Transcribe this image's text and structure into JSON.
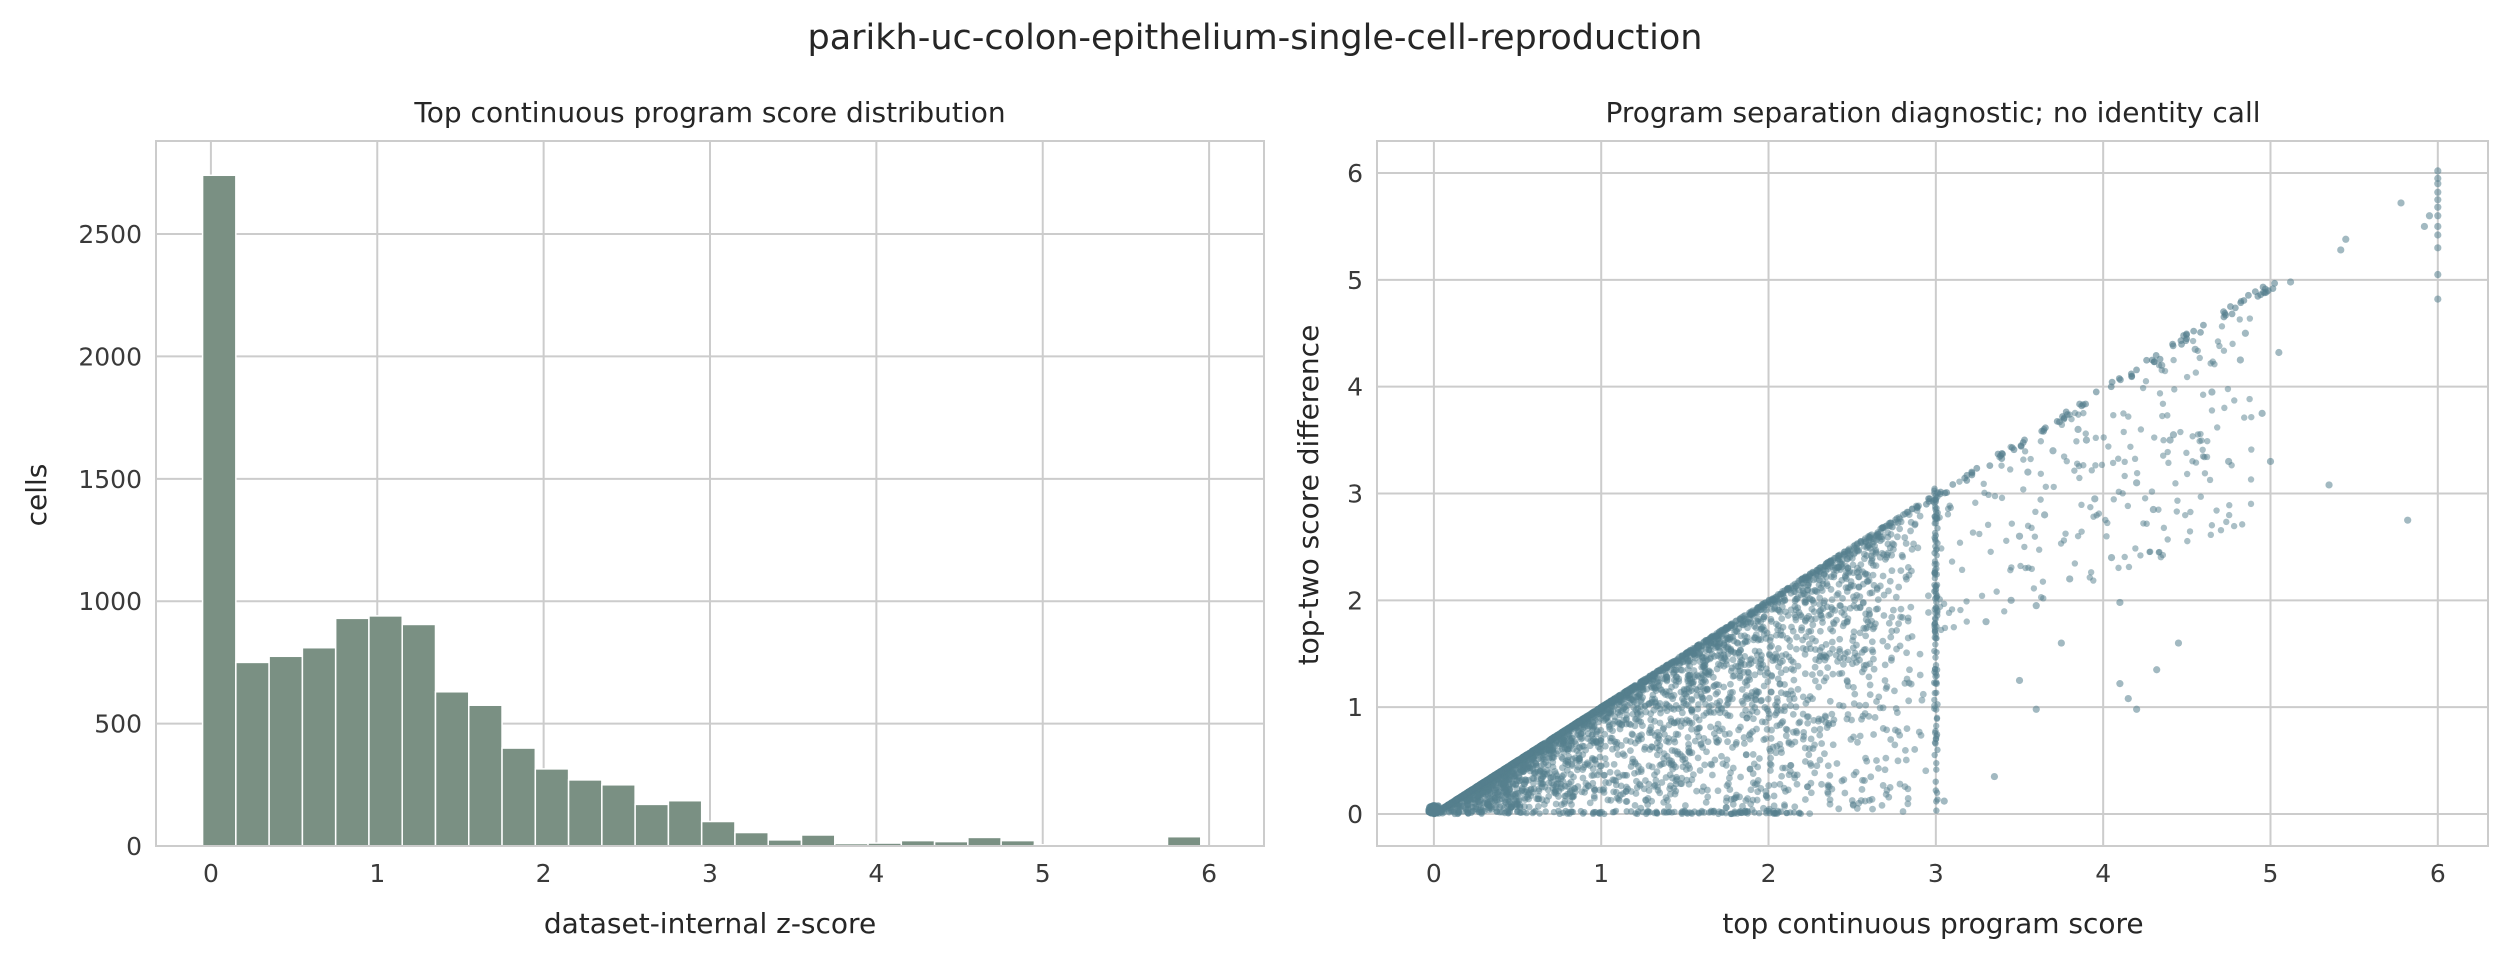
{
  "figure": {
    "suptitle": "parikh-uc-colon-epithelium-single-cell-reproduction",
    "background": "#ffffff",
    "grid_color": "#cccccc",
    "spine_color": "#cccccc"
  },
  "chart_data": [
    {
      "type": "bar",
      "title": "Top continuous program score distribution",
      "xlabel": "dataset-internal z-score",
      "ylabel": "cells",
      "color": "#7a9083",
      "xlim": [
        -0.33,
        6.33
      ],
      "ylim": [
        0,
        2880
      ],
      "xticks": [
        0,
        1,
        2,
        3,
        4,
        5,
        6
      ],
      "xtick_labels": [
        "0",
        "1",
        "2",
        "3",
        "4",
        "5",
        "6"
      ],
      "yticks": [
        0,
        500,
        1000,
        1500,
        2000,
        2500
      ],
      "ytick_labels": [
        "0",
        "500",
        "1000",
        "1500",
        "2000",
        "2500"
      ],
      "grid": true,
      "bin_width": 0.2,
      "bin_start": -0.05,
      "values": [
        2740,
        750,
        775,
        810,
        930,
        940,
        905,
        630,
        575,
        400,
        315,
        270,
        250,
        170,
        185,
        100,
        55,
        25,
        45,
        10,
        12,
        22,
        18,
        35,
        22,
        5,
        5,
        5,
        5,
        38
      ]
    },
    {
      "type": "scatter",
      "title": "Program separation diagnostic; no identity call",
      "xlabel": "top continuous program score",
      "ylabel": "top-two score difference",
      "color": "#557f8e",
      "xlim": [
        -0.34,
        6.3
      ],
      "ylim": [
        -0.3,
        6.3
      ],
      "xticks": [
        0,
        1,
        2,
        3,
        4,
        5,
        6
      ],
      "xtick_labels": [
        "0",
        "1",
        "2",
        "3",
        "4",
        "5",
        "6"
      ],
      "yticks": [
        0,
        1,
        2,
        3,
        4,
        5,
        6
      ],
      "ytick_labels": [
        "0",
        "1",
        "2",
        "3",
        "4",
        "5",
        "6"
      ],
      "grid": true,
      "points": [
        [
          6,
          6.02
        ],
        [
          6,
          5.95
        ],
        [
          6,
          5.9
        ],
        [
          6,
          5.82
        ],
        [
          6,
          5.75
        ],
        [
          6,
          5.68
        ],
        [
          6,
          5.6
        ],
        [
          6,
          5.5
        ],
        [
          6,
          5.42
        ],
        [
          6,
          5.3
        ],
        [
          6,
          5.05
        ],
        [
          6,
          4.82
        ],
        [
          5.95,
          5.6
        ],
        [
          5.78,
          5.72
        ],
        [
          5.92,
          5.5
        ],
        [
          5.45,
          5.38
        ],
        [
          5.42,
          5.28
        ],
        [
          5.12,
          4.98
        ],
        [
          5.05,
          4.32
        ],
        [
          4.95,
          3.75
        ],
        [
          4.85,
          4.5
        ],
        [
          4.82,
          4.25
        ],
        [
          4.75,
          3.3
        ],
        [
          4.65,
          3.95
        ],
        [
          4.55,
          4.35
        ],
        [
          4.45,
          1.6
        ],
        [
          4.42,
          3.55
        ],
        [
          4.35,
          4.2
        ],
        [
          4.32,
          1.35
        ],
        [
          4.2,
          0.98
        ],
        [
          4.15,
          1.08
        ],
        [
          4.1,
          1.22
        ],
        [
          4.1,
          1.98
        ],
        [
          4.3,
          2.85
        ],
        [
          4.05,
          2.4
        ],
        [
          4.2,
          3.1
        ],
        [
          4.4,
          3.5
        ],
        [
          3.9,
          3.5
        ],
        [
          3.95,
          2.95
        ],
        [
          5.35,
          3.08
        ],
        [
          5.82,
          2.75
        ],
        [
          5.0,
          3.3
        ],
        [
          3.05,
          0.12
        ],
        [
          3.35,
          0.35
        ],
        [
          3.5,
          1.25
        ],
        [
          3.6,
          0.98
        ],
        [
          3.75,
          1.6
        ],
        [
          3.8,
          2.2
        ],
        [
          3.65,
          2.8
        ],
        [
          3.55,
          3.2
        ],
        [
          3.5,
          2.6
        ],
        [
          3.3,
          1.8
        ],
        [
          3.45,
          2.0
        ],
        [
          3.7,
          3.4
        ],
        [
          3.85,
          3.6
        ],
        [
          3.6,
          1.95
        ]
      ]
    }
  ]
}
